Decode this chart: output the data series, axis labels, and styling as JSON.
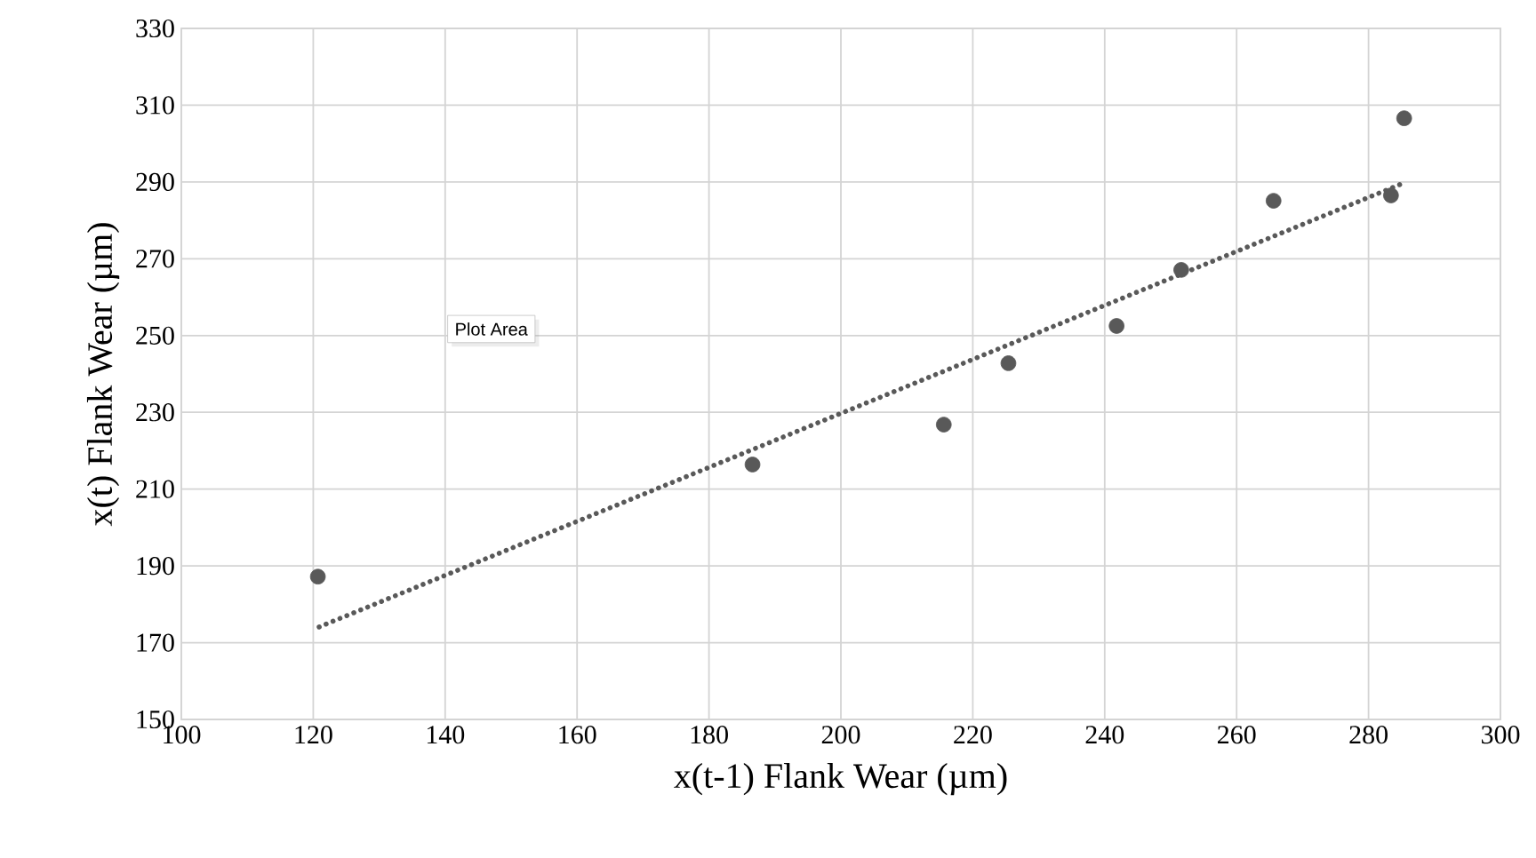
{
  "chart_data": {
    "type": "scatter",
    "xlabel": "x(t-1) Flank Wear (µm)",
    "ylabel": "x(t) Flank Wear (µm)",
    "annotations": [
      "Plot Area"
    ],
    "xlim": [
      100,
      300
    ],
    "xticks": [
      100,
      120,
      140,
      160,
      180,
      200,
      220,
      240,
      260,
      280,
      300
    ],
    "ylim": [
      150,
      330
    ],
    "yticks": [
      150,
      170,
      190,
      210,
      230,
      250,
      270,
      290,
      310,
      330
    ],
    "grid": true,
    "series": [
      {
        "color": "#595959",
        "marker": "circle",
        "x": [
          120.7,
          186.6,
          215.6,
          225.4,
          241.8,
          251.6,
          265.6,
          283.4,
          285.4
        ],
        "values": [
          187.2,
          216.4,
          226.8,
          242.8,
          252.5,
          267.1,
          285.1,
          286.5,
          306.6
        ]
      },
      {
        "type": "line",
        "color": "#595959",
        "marker": "none",
        "line_style": "dotted",
        "x": [
          120.9,
          285.0
        ],
        "values": [
          174.1,
          289.5
        ]
      }
    ]
  }
}
